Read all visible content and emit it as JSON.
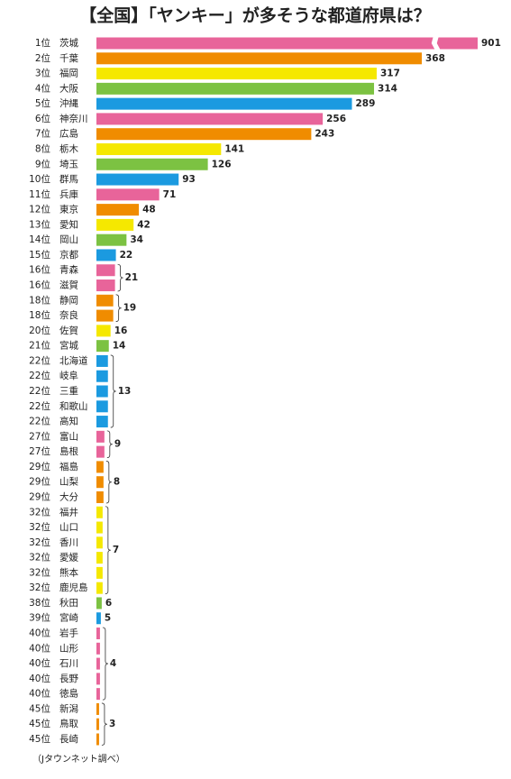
{
  "chart_data": {
    "type": "bar",
    "orientation": "horizontal",
    "title": "【全国】「ヤンキー」が多そうな都道府県は？",
    "source": "（Jタウンネット調べ）",
    "ranks": [
      "1位",
      "2位",
      "3位",
      "4位",
      "5位",
      "6位",
      "7位",
      "8位",
      "9位",
      "10位",
      "11位",
      "12位",
      "13位",
      "14位",
      "15位",
      "16位",
      "16位",
      "18位",
      "18位",
      "20位",
      "21位",
      "22位",
      "22位",
      "22位",
      "22位",
      "22位",
      "27位",
      "27位",
      "29位",
      "29位",
      "29位",
      "32位",
      "32位",
      "32位",
      "32位",
      "32位",
      "32位",
      "38位",
      "39位",
      "40位",
      "40位",
      "40位",
      "40位",
      "40位",
      "45位",
      "45位",
      "45位"
    ],
    "categories": [
      "茨城",
      "千葉",
      "福岡",
      "大阪",
      "沖縄",
      "神奈川",
      "広島",
      "栃木",
      "埼玉",
      "群馬",
      "兵庫",
      "東京",
      "愛知",
      "岡山",
      "京都",
      "青森",
      "滋賀",
      "静岡",
      "奈良",
      "佐賀",
      "宮城",
      "北海道",
      "岐阜",
      "三重",
      "和歌山",
      "高知",
      "富山",
      "島根",
      "福島",
      "山梨",
      "大分",
      "福井",
      "山口",
      "香川",
      "愛媛",
      "熊本",
      "鹿児島",
      "秋田",
      "宮崎",
      "岩手",
      "山形",
      "石川",
      "長野",
      "徳島",
      "新潟",
      "鳥取",
      "長崎"
    ],
    "values": [
      901,
      368,
      317,
      314,
      289,
      256,
      243,
      141,
      126,
      93,
      71,
      48,
      42,
      34,
      22,
      21,
      21,
      19,
      19,
      16,
      14,
      13,
      13,
      13,
      13,
      13,
      9,
      9,
      8,
      8,
      8,
      7,
      7,
      7,
      7,
      7,
      7,
      6,
      5,
      4,
      4,
      4,
      4,
      4,
      3,
      3,
      3
    ],
    "colors": [
      "#e8649a",
      "#f08c00",
      "#f5e800",
      "#7cc242",
      "#1b9ae0",
      "#e8649a",
      "#f08c00",
      "#f5e800",
      "#7cc242",
      "#1b9ae0",
      "#e8649a",
      "#f08c00",
      "#f5e800",
      "#7cc242",
      "#1b9ae0",
      "#e8649a",
      "#e8649a",
      "#f08c00",
      "#f08c00",
      "#f5e800",
      "#7cc242",
      "#1b9ae0",
      "#1b9ae0",
      "#1b9ae0",
      "#1b9ae0",
      "#1b9ae0",
      "#e8649a",
      "#e8649a",
      "#f08c00",
      "#f08c00",
      "#f08c00",
      "#f5e800",
      "#f5e800",
      "#f5e800",
      "#f5e800",
      "#f5e800",
      "#f5e800",
      "#7cc242",
      "#1b9ae0",
      "#e8649a",
      "#e8649a",
      "#e8649a",
      "#e8649a",
      "#e8649a",
      "#f08c00",
      "#f08c00",
      "#f08c00"
    ],
    "xlim": [
      0,
      920
    ],
    "x_break": [
      380,
      860
    ]
  }
}
